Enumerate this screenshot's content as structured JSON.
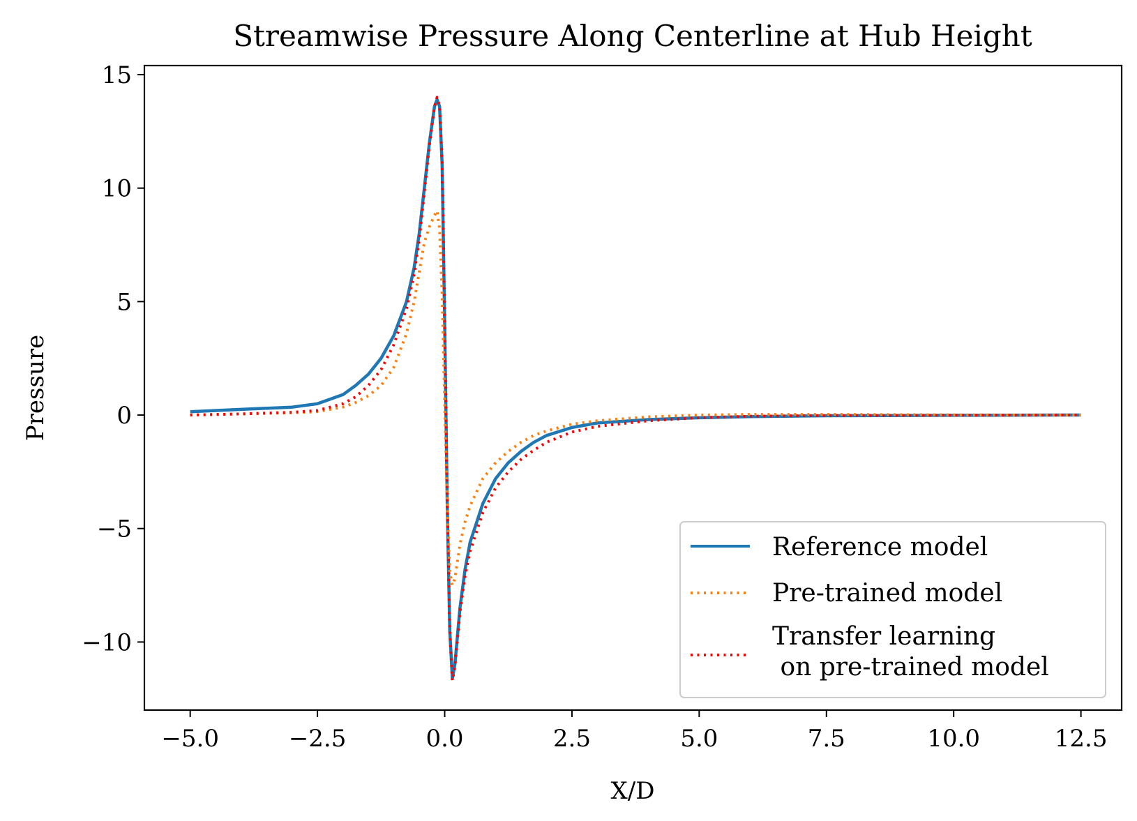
{
  "chart_data": {
    "type": "line",
    "title": "Streamwise Pressure Along Centerline at Hub Height",
    "xlabel": "X/D",
    "ylabel": "Pressure",
    "xlim": [
      -5.9,
      13.3
    ],
    "ylim": [
      -13.0,
      15.4
    ],
    "xticks": [
      -5.0,
      -2.5,
      0.0,
      2.5,
      5.0,
      7.5,
      10.0,
      12.5
    ],
    "xtick_labels": [
      "−5.0",
      "−2.5",
      "0.0",
      "2.5",
      "5.0",
      "7.5",
      "10.0",
      "12.5"
    ],
    "yticks": [
      15,
      10,
      5,
      0,
      -5,
      -10
    ],
    "ytick_labels": [
      "15",
      "10",
      "5",
      "0",
      "−5",
      "−10"
    ],
    "grid": false,
    "legend_position": "lower-right",
    "series": [
      {
        "name": "Reference model",
        "color": "#1f77b4",
        "style": "solid",
        "x": [
          -5.0,
          -4.0,
          -3.0,
          -2.5,
          -2.0,
          -1.75,
          -1.5,
          -1.25,
          -1.0,
          -0.75,
          -0.6,
          -0.5,
          -0.4,
          -0.3,
          -0.2,
          -0.15,
          -0.1,
          -0.05,
          0.0,
          0.05,
          0.1,
          0.15,
          0.2,
          0.3,
          0.4,
          0.5,
          0.75,
          1.0,
          1.25,
          1.5,
          1.75,
          2.0,
          2.5,
          3.0,
          4.0,
          5.0,
          6.0,
          7.5,
          10.0,
          12.5
        ],
        "y": [
          0.15,
          0.25,
          0.35,
          0.5,
          0.9,
          1.3,
          1.8,
          2.5,
          3.5,
          5.0,
          6.5,
          8.0,
          10.0,
          12.0,
          13.6,
          13.9,
          13.6,
          11.0,
          4.0,
          -4.0,
          -9.5,
          -11.6,
          -11.0,
          -8.5,
          -6.8,
          -5.6,
          -3.9,
          -2.8,
          -2.1,
          -1.6,
          -1.2,
          -0.9,
          -0.55,
          -0.35,
          -0.2,
          -0.12,
          -0.07,
          -0.03,
          -0.01,
          0.0
        ]
      },
      {
        "name": "Pre-trained model",
        "color": "#ff7f0e",
        "style": "dotted",
        "x": [
          -5.0,
          -4.0,
          -3.0,
          -2.5,
          -2.0,
          -1.75,
          -1.5,
          -1.25,
          -1.0,
          -0.75,
          -0.6,
          -0.5,
          -0.4,
          -0.3,
          -0.2,
          -0.15,
          -0.1,
          -0.05,
          0.0,
          0.05,
          0.1,
          0.15,
          0.2,
          0.3,
          0.4,
          0.5,
          0.75,
          1.0,
          1.25,
          1.5,
          1.75,
          2.0,
          2.5,
          3.0,
          4.0,
          5.0,
          6.0,
          7.5,
          10.0,
          12.5
        ],
        "y": [
          0.0,
          0.05,
          0.1,
          0.15,
          0.35,
          0.55,
          0.85,
          1.3,
          2.1,
          3.6,
          5.0,
          6.3,
          7.6,
          8.3,
          8.8,
          9.0,
          8.2,
          5.2,
          0.5,
          -4.0,
          -6.9,
          -7.5,
          -7.2,
          -5.7,
          -4.7,
          -4.0,
          -2.8,
          -2.1,
          -1.6,
          -1.2,
          -0.9,
          -0.7,
          -0.4,
          -0.25,
          -0.08,
          0.0,
          0.03,
          0.03,
          0.01,
          0.0
        ]
      },
      {
        "name": "Transfer learning\n on pre-trained model",
        "color": "#ff0000",
        "style": "dotted",
        "x": [
          -5.0,
          -4.0,
          -3.0,
          -2.5,
          -2.0,
          -1.75,
          -1.5,
          -1.25,
          -1.0,
          -0.75,
          -0.6,
          -0.5,
          -0.4,
          -0.3,
          -0.2,
          -0.15,
          -0.1,
          -0.05,
          0.0,
          0.05,
          0.1,
          0.15,
          0.2,
          0.3,
          0.4,
          0.5,
          0.75,
          1.0,
          1.25,
          1.5,
          1.75,
          2.0,
          2.5,
          3.0,
          4.0,
          5.0,
          6.0,
          7.5,
          10.0,
          12.5
        ],
        "y": [
          0.0,
          0.05,
          0.12,
          0.2,
          0.5,
          0.8,
          1.3,
          2.0,
          3.1,
          4.7,
          6.2,
          7.7,
          9.8,
          11.9,
          13.6,
          14.0,
          13.6,
          11.0,
          4.0,
          -4.0,
          -9.5,
          -11.7,
          -11.1,
          -8.7,
          -7.1,
          -6.0,
          -4.3,
          -3.2,
          -2.5,
          -1.95,
          -1.55,
          -1.2,
          -0.75,
          -0.5,
          -0.25,
          -0.12,
          -0.05,
          -0.02,
          -0.01,
          0.0
        ]
      }
    ]
  }
}
